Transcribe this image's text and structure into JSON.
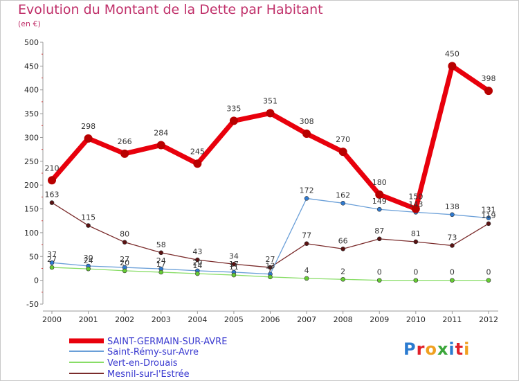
{
  "header": {
    "title": "Evolution du Montant de la Dette par Habitant",
    "subtitle": "(en €)"
  },
  "logo": {
    "text": "Proxiti",
    "letters": [
      "P",
      "r",
      "o",
      "x",
      "i",
      "t",
      "i"
    ],
    "colors": [
      "#2b7bd0",
      "#e0202a",
      "#f0a020",
      "#3aa63a",
      "#2b7bd0",
      "#e0202a",
      "#f0a020"
    ]
  },
  "chart_data": {
    "type": "line",
    "x": [
      "2000",
      "2001",
      "2002",
      "2003",
      "2004",
      "2005",
      "2006",
      "2007",
      "2008",
      "2009",
      "2010",
      "2011",
      "2012"
    ],
    "ylim": [
      -50,
      500
    ],
    "yticks": [
      -50,
      0,
      50,
      100,
      150,
      200,
      250,
      300,
      350,
      400,
      450,
      500
    ],
    "grid": false,
    "legend_position": "bottom-left",
    "series": [
      {
        "name": "SAINT-GERMAIN-SUR-AVRE",
        "values": [
          210,
          298,
          266,
          284,
          245,
          335,
          351,
          308,
          270,
          180,
          150,
          450,
          398
        ],
        "labels": [
          "210",
          "298",
          "266",
          "284",
          "245",
          "335",
          "351",
          "308",
          "270",
          "180",
          "150",
          "450",
          "398"
        ],
        "color": "#e8000c",
        "marker": "#b80000",
        "width": 7,
        "radius": 6
      },
      {
        "name": "Saint-Rémy-sur-Avre",
        "values": [
          37,
          30,
          27,
          24,
          20,
          17,
          13,
          172,
          162,
          149,
          143,
          138,
          131
        ],
        "labels": [
          "37",
          "30",
          "27",
          "24",
          "20",
          "17",
          "13",
          "172",
          "162",
          "149",
          "143",
          "138",
          "131"
        ],
        "color": "#6a9fd8",
        "marker": "#2f7ad0",
        "width": 1.3,
        "radius": 3
      },
      {
        "name": "Vert-en-Drouais",
        "values": [
          27,
          24,
          20,
          17,
          14,
          11,
          7,
          4,
          2,
          0,
          0,
          0,
          0
        ],
        "labels": [
          "27",
          "24",
          "20",
          "17",
          "14",
          "11",
          "7",
          "4",
          "2",
          "0",
          "0",
          "0",
          "0"
        ],
        "color": "#88dd66",
        "marker": "#66cc33",
        "width": 1.3,
        "radius": 3
      },
      {
        "name": "Mesnil-sur-l'Estrée",
        "values": [
          163,
          115,
          80,
          58,
          43,
          34,
          27,
          77,
          66,
          87,
          81,
          73,
          119
        ],
        "labels": [
          "163",
          "115",
          "80",
          "58",
          "43",
          "34",
          "27",
          "77",
          "66",
          "87",
          "81",
          "73",
          "119"
        ],
        "color": "#7a2b2b",
        "marker": "#5a1212",
        "width": 1.3,
        "radius": 3
      }
    ]
  }
}
